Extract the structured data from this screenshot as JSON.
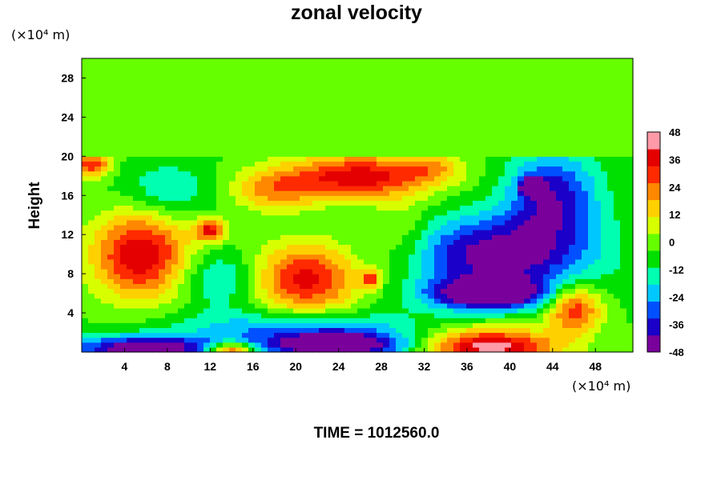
{
  "chart_data": {
    "type": "heatmap",
    "title": "zonal velocity",
    "ylabel": "Height",
    "xlabel": "",
    "x_unit": "(×10⁴ m)",
    "y_unit": "(×10⁴ m)",
    "footer": "TIME = 1012560.0",
    "xlim": [
      0,
      51.5
    ],
    "ylim": [
      0,
      30
    ],
    "xticks": [
      4,
      8,
      12,
      16,
      20,
      24,
      28,
      32,
      36,
      40,
      44,
      48
    ],
    "yticks": [
      4,
      8,
      12,
      16,
      20,
      24,
      28
    ],
    "colorbar": {
      "levels": [
        48,
        36,
        24,
        12,
        0,
        -12,
        -24,
        -36,
        -48
      ],
      "min": -48,
      "max": 48,
      "colors": [
        "#7a009c",
        "#1a00c8",
        "#0050ff",
        "#00c8ff",
        "#00ffb0",
        "#00e000",
        "#66ff00",
        "#d8ff00",
        "#ffd000",
        "#ff8800",
        "#ff2a00",
        "#e40000",
        "#ff9aa8"
      ]
    },
    "value_field": {
      "background_above_20": 0,
      "background_below_20": -4,
      "features": [
        {
          "x": 5.5,
          "y": 10,
          "sx": 3.2,
          "sy": 3.2,
          "v": 44
        },
        {
          "x": 21,
          "y": 7.5,
          "sx": 3.5,
          "sy": 2.6,
          "v": 40
        },
        {
          "x": 26,
          "y": 18,
          "sx": 5,
          "sy": 1.6,
          "v": 42
        },
        {
          "x": 18,
          "y": 16.5,
          "sx": 3,
          "sy": 1.5,
          "v": 22
        },
        {
          "x": 12,
          "y": 12.5,
          "sx": 1,
          "sy": 0.8,
          "v": 38
        },
        {
          "x": 27,
          "y": 7.5,
          "sx": 0.6,
          "sy": 0.6,
          "v": 36
        },
        {
          "x": 1,
          "y": 19.2,
          "sx": 1.2,
          "sy": 0.9,
          "v": 36
        },
        {
          "x": 46,
          "y": 4.5,
          "sx": 1.8,
          "sy": 1.7,
          "v": 38
        },
        {
          "x": 38,
          "y": 0.6,
          "sx": 4.5,
          "sy": 1.3,
          "v": 50
        },
        {
          "x": 14,
          "y": 0.2,
          "sx": 1.5,
          "sy": 0.6,
          "v": 48
        },
        {
          "x": 39,
          "y": 10,
          "sx": 6,
          "sy": 2.8,
          "v": -42
        },
        {
          "x": 38,
          "y": 6,
          "sx": 4,
          "sy": 1.1,
          "v": -48
        },
        {
          "x": 44,
          "y": 16,
          "sx": 3,
          "sy": 3.2,
          "v": -34
        },
        {
          "x": 42,
          "y": 17,
          "sx": 0.7,
          "sy": 0.6,
          "v": -46
        },
        {
          "x": 24,
          "y": 0.7,
          "sx": 5,
          "sy": 1,
          "v": -48
        },
        {
          "x": 6,
          "y": 0.4,
          "sx": 5,
          "sy": 0.9,
          "v": -46
        },
        {
          "x": 20,
          "y": 2.5,
          "sx": 8,
          "sy": 1.3,
          "v": -22
        },
        {
          "x": 13,
          "y": 7.5,
          "sx": 2.5,
          "sy": 2,
          "v": -18
        },
        {
          "x": 30,
          "y": 12,
          "sx": 2,
          "sy": 3,
          "v": 12
        },
        {
          "x": 8,
          "y": 16.5,
          "sx": 3,
          "sy": 2,
          "v": -16
        },
        {
          "x": 33,
          "y": 19,
          "sx": 2,
          "sy": 1,
          "v": 14
        }
      ]
    }
  }
}
